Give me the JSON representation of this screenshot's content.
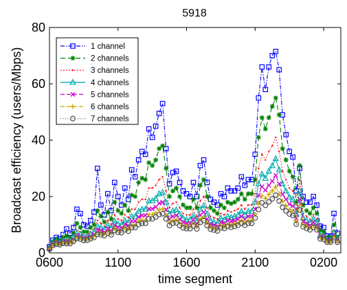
{
  "chart_data": {
    "type": "line",
    "title": "5918",
    "xlabel": "time segment",
    "ylabel": "Broadcast efficiency (users/Mbps)",
    "xlim": [
      0,
      85
    ],
    "ylim": [
      0,
      80
    ],
    "grid": false,
    "legend_position": "top-left",
    "x_ticks": [
      {
        "x": 0,
        "label": "0600"
      },
      {
        "x": 20,
        "label": "1100"
      },
      {
        "x": 40,
        "label": "1600"
      },
      {
        "x": 60,
        "label": "2100"
      },
      {
        "x": 80,
        "label": "0200"
      }
    ],
    "y_ticks": [
      {
        "y": 0,
        "label": "0"
      },
      {
        "y": 20,
        "label": "20"
      },
      {
        "y": 40,
        "label": "40"
      },
      {
        "y": 60,
        "label": "60"
      },
      {
        "y": 80,
        "label": "80"
      }
    ],
    "x": [
      0,
      1,
      2,
      3,
      4,
      5,
      6,
      7,
      8,
      9,
      10,
      11,
      12,
      13,
      14,
      15,
      16,
      17,
      18,
      19,
      20,
      21,
      22,
      23,
      24,
      25,
      26,
      27,
      28,
      29,
      30,
      31,
      32,
      33,
      34,
      35,
      36,
      37,
      38,
      39,
      40,
      41,
      42,
      43,
      44,
      45,
      46,
      47,
      48,
      49,
      50,
      51,
      52,
      53,
      54,
      55,
      56,
      57,
      58,
      59,
      60,
      61,
      62,
      63,
      64,
      65,
      66,
      67,
      68,
      69,
      70,
      71,
      72,
      73,
      74,
      75,
      76,
      77,
      78,
      79,
      80,
      81,
      82,
      83,
      84
    ],
    "series": [
      {
        "name": "1 channel",
        "color": "#0000FF",
        "dash": "6,2,1.5,2",
        "marker": "square",
        "values": [
          2.2,
          4.5,
          5.5,
          5.0,
          6.5,
          8.5,
          7.0,
          9.0,
          15.5,
          14.0,
          10.0,
          9.5,
          11.5,
          14.5,
          30.0,
          17.0,
          13.5,
          21.0,
          15.0,
          25.0,
          20.0,
          17.0,
          23.0,
          19.0,
          29.5,
          27.0,
          33.0,
          36.0,
          35.0,
          44.0,
          41.0,
          45.0,
          49.5,
          53.0,
          37.0,
          24.5,
          28.5,
          29.0,
          25.0,
          22.0,
          21.0,
          20.0,
          25.0,
          20.0,
          31.0,
          33.0,
          25.0,
          19.0,
          18.0,
          17.0,
          21.0,
          20.0,
          23.0,
          22.0,
          22.0,
          23.0,
          27.0,
          24.0,
          26.0,
          26.0,
          35.0,
          55.0,
          66.0,
          58.0,
          66.0,
          70.0,
          71.5,
          65.0,
          49.0,
          42.0,
          36.0,
          34.0,
          22.0,
          30.0,
          20.0,
          18.0,
          18.0,
          20.0,
          17.0,
          9.5,
          9.0,
          6.0,
          6.0,
          14.0,
          7.0
        ]
      },
      {
        "name": "2 channels",
        "color": "#008000",
        "dash": "7,4",
        "marker": "star",
        "values": [
          2.0,
          4.0,
          5.0,
          4.5,
          5.5,
          6.0,
          5.5,
          7.0,
          10.5,
          9.0,
          7.5,
          7.5,
          9.0,
          10.0,
          15.0,
          13.0,
          11.0,
          14.5,
          12.0,
          18.0,
          15.0,
          14.0,
          17.0,
          15.0,
          20.5,
          20.0,
          25.0,
          26.5,
          26.0,
          32.0,
          31.0,
          33.0,
          37.0,
          38.0,
          30.0,
          20.0,
          22.0,
          23.0,
          20.0,
          17.0,
          16.0,
          16.0,
          19.0,
          16.0,
          24.0,
          26.0,
          20.0,
          16.0,
          15.0,
          14.0,
          17.0,
          16.0,
          18.0,
          17.5,
          18.0,
          19.0,
          21.0,
          19.0,
          21.0,
          21.0,
          26.0,
          41.0,
          48.0,
          44.0,
          48.0,
          52.0,
          55.0,
          49.0,
          37.0,
          33.0,
          29.0,
          27.0,
          18.0,
          31.0,
          17.0,
          15.0,
          14.0,
          16.0,
          14.0,
          8.0,
          7.5,
          5.5,
          5.5,
          10.0,
          5.5
        ]
      },
      {
        "name": "3 channels",
        "color": "#FF0000",
        "dash": "1.5,2.5",
        "marker": "dot",
        "values": [
          1.8,
          3.5,
          4.5,
          4.0,
          5.0,
          5.0,
          4.8,
          6.0,
          8.0,
          7.5,
          6.5,
          6.5,
          7.5,
          8.5,
          11.5,
          10.5,
          9.5,
          11.5,
          10.0,
          13.5,
          12.0,
          11.5,
          13.5,
          12.5,
          15.5,
          15.5,
          18.0,
          19.0,
          19.0,
          23.0,
          23.0,
          24.0,
          26.0,
          27.0,
          22.0,
          16.0,
          17.5,
          18.0,
          16.0,
          14.0,
          13.5,
          13.5,
          15.5,
          13.0,
          18.5,
          20.0,
          16.0,
          13.0,
          12.5,
          12.0,
          14.0,
          13.5,
          15.0,
          14.5,
          15.0,
          15.5,
          17.0,
          15.5,
          17.0,
          17.0,
          21.0,
          30.0,
          35.0,
          33.0,
          36.0,
          38.0,
          41.0,
          36.0,
          29.0,
          26.0,
          23.0,
          22.0,
          15.5,
          26.0,
          14.0,
          13.0,
          12.0,
          13.5,
          12.0,
          7.0,
          6.5,
          5.0,
          5.0,
          8.0,
          5.0
        ]
      },
      {
        "name": "4 channels",
        "color": "#00AAAA",
        "dash": "none",
        "marker": "triangle",
        "values": [
          1.6,
          3.2,
          4.0,
          3.6,
          4.5,
          4.5,
          4.3,
          5.3,
          7.0,
          6.6,
          5.8,
          5.8,
          6.6,
          7.5,
          9.5,
          9.0,
          8.3,
          9.8,
          8.8,
          11.3,
          10.3,
          10.0,
          11.5,
          10.8,
          13.0,
          13.0,
          14.8,
          15.5,
          15.5,
          18.5,
          18.5,
          19.3,
          21.0,
          21.5,
          18.0,
          13.8,
          15.0,
          15.3,
          13.8,
          12.3,
          11.8,
          11.8,
          13.3,
          11.5,
          15.5,
          16.8,
          13.8,
          11.5,
          11.0,
          10.5,
          12.3,
          11.8,
          13.0,
          12.6,
          13.0,
          13.5,
          14.8,
          13.5,
          14.8,
          14.8,
          18.0,
          24.5,
          28.0,
          26.5,
          29.0,
          31.0,
          33.5,
          29.5,
          24.5,
          22.0,
          19.8,
          19.0,
          13.8,
          22.0,
          12.5,
          11.5,
          10.8,
          12.0,
          10.8,
          6.3,
          6.0,
          4.6,
          4.6,
          7.0,
          4.6
        ]
      },
      {
        "name": "5 channels",
        "color": "#CC00CC",
        "dash": "6,3",
        "marker": "x",
        "values": [
          1.5,
          3.0,
          3.6,
          3.3,
          4.0,
          4.0,
          3.9,
          4.8,
          6.2,
          5.9,
          5.2,
          5.3,
          5.9,
          6.6,
          8.2,
          7.9,
          7.4,
          8.6,
          7.8,
          9.8,
          9.0,
          8.8,
          10.1,
          9.5,
          11.3,
          11.3,
          12.8,
          13.3,
          13.3,
          15.6,
          15.6,
          16.3,
          17.6,
          18.0,
          15.3,
          12.0,
          13.0,
          13.3,
          12.0,
          10.9,
          10.5,
          10.5,
          11.8,
          10.3,
          13.5,
          14.5,
          12.0,
          10.2,
          9.8,
          9.4,
          10.9,
          10.5,
          11.5,
          11.2,
          11.5,
          12.0,
          13.0,
          12.0,
          13.0,
          13.0,
          15.5,
          20.5,
          23.5,
          22.3,
          24.0,
          25.5,
          27.5,
          24.5,
          20.8,
          19.0,
          17.3,
          16.6,
          12.3,
          19.0,
          11.2,
          10.4,
          9.8,
          10.8,
          9.8,
          5.8,
          5.5,
          4.3,
          4.3,
          6.3,
          4.3
        ]
      },
      {
        "name": "6 channels",
        "color": "#C8A800",
        "dash": "6,3",
        "marker": "plus",
        "values": [
          1.4,
          2.8,
          3.3,
          3.1,
          3.7,
          3.6,
          3.6,
          4.4,
          5.6,
          5.4,
          4.8,
          4.9,
          5.4,
          6.0,
          7.3,
          7.1,
          6.7,
          7.7,
          7.0,
          8.7,
          8.0,
          7.9,
          9.0,
          8.5,
          10.0,
          10.0,
          11.3,
          11.7,
          11.7,
          13.6,
          13.6,
          14.2,
          15.3,
          15.6,
          13.5,
          10.7,
          11.6,
          11.8,
          10.7,
          9.8,
          9.5,
          9.5,
          10.6,
          9.3,
          12.0,
          12.8,
          10.7,
          9.2,
          8.9,
          8.5,
          9.8,
          9.5,
          10.3,
          10.0,
          10.3,
          10.7,
          11.6,
          10.7,
          11.6,
          11.6,
          13.7,
          17.6,
          20.3,
          19.3,
          20.7,
          22.0,
          23.5,
          21.0,
          18.3,
          16.8,
          15.4,
          14.8,
          11.2,
          16.9,
          10.2,
          9.5,
          8.9,
          9.8,
          8.9,
          5.4,
          5.1,
          4.0,
          4.0,
          5.8,
          4.0
        ]
      },
      {
        "name": "7 channels",
        "color": "#555555",
        "dash": "1,2.5",
        "marker": "circle",
        "values": [
          1.3,
          2.6,
          3.1,
          2.9,
          3.4,
          3.3,
          3.3,
          4.1,
          5.1,
          4.9,
          4.4,
          4.5,
          5.0,
          5.5,
          6.6,
          6.4,
          6.1,
          7.0,
          6.4,
          7.9,
          7.3,
          7.2,
          8.2,
          7.7,
          9.0,
          9.0,
          10.1,
          10.5,
          10.5,
          12.1,
          12.1,
          12.7,
          13.6,
          13.9,
          12.1,
          9.7,
          10.5,
          10.7,
          9.7,
          8.9,
          8.6,
          8.6,
          9.6,
          8.5,
          10.8,
          11.5,
          9.7,
          8.4,
          8.1,
          7.8,
          8.9,
          8.7,
          9.4,
          9.1,
          9.4,
          9.8,
          10.5,
          9.8,
          10.5,
          10.5,
          12.4,
          15.4,
          17.8,
          16.9,
          18.1,
          19.2,
          20.5,
          18.4,
          16.2,
          14.9,
          13.8,
          13.3,
          10.2,
          15.2,
          9.3,
          8.7,
          8.2,
          9.0,
          8.2,
          5.0,
          4.8,
          3.8,
          3.8,
          5.4,
          3.8
        ]
      }
    ]
  }
}
